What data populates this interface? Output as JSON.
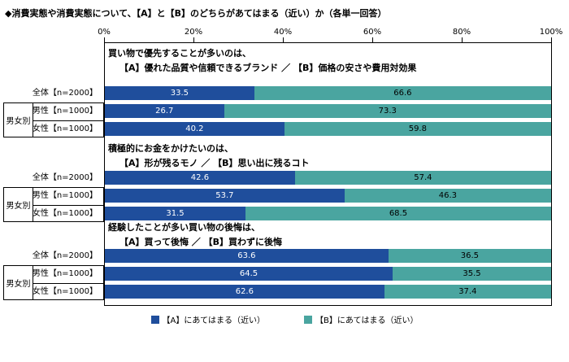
{
  "title": "◆消費実態や消費実態について、【A】と【B】のどちらがあてはまる（近い）か（各単一回答）",
  "group_label": "男女別",
  "colors": {
    "a": "#1f4e9c",
    "b": "#4aa5a0"
  },
  "legend": {
    "a": "【A】にあてはまる（近い）",
    "b": "【B】にあてはまる（近い）"
  },
  "axis": {
    "ticks": [
      "0%",
      "20%",
      "40%",
      "60%",
      "80%",
      "100%"
    ],
    "min": 0,
    "max": 100
  },
  "chart_data": {
    "type": "bar",
    "stacked": true,
    "orientation": "horizontal",
    "xlim": [
      0,
      100
    ],
    "unit": "%",
    "series_names": [
      "【A】にあてはまる（近い）",
      "【B】にあてはまる（近い）"
    ],
    "sections": [
      {
        "q1": "買い物で優先することが多いのは、",
        "q2": "【A】優れた品質や信頼できるブランド ／ 【B】価格の安さや費用対効果",
        "rows": [
          {
            "label": "全体【n=2000】",
            "a": 33.5,
            "b": 66.6
          },
          {
            "label": "男性【n=1000】",
            "a": 26.7,
            "b": 73.3
          },
          {
            "label": "女性【n=1000】",
            "a": 40.2,
            "b": 59.8
          }
        ]
      },
      {
        "q1": "積極的にお金をかけたいのは、",
        "q2": "【A】形が残るモノ ／ 【B】思い出に残るコト",
        "rows": [
          {
            "label": "全体【n=2000】",
            "a": 42.6,
            "b": 57.4
          },
          {
            "label": "男性【n=1000】",
            "a": 53.7,
            "b": 46.3
          },
          {
            "label": "女性【n=1000】",
            "a": 31.5,
            "b": 68.5
          }
        ]
      },
      {
        "q1": "経験したことが多い買い物の後悔は、",
        "q2": "【A】買って後悔 ／ 【B】買わずに後悔",
        "rows": [
          {
            "label": "全体【n=2000】",
            "a": 63.6,
            "b": 36.5
          },
          {
            "label": "男性【n=1000】",
            "a": 64.5,
            "b": 35.5
          },
          {
            "label": "女性【n=1000】",
            "a": 62.6,
            "b": 37.4
          }
        ]
      }
    ]
  }
}
